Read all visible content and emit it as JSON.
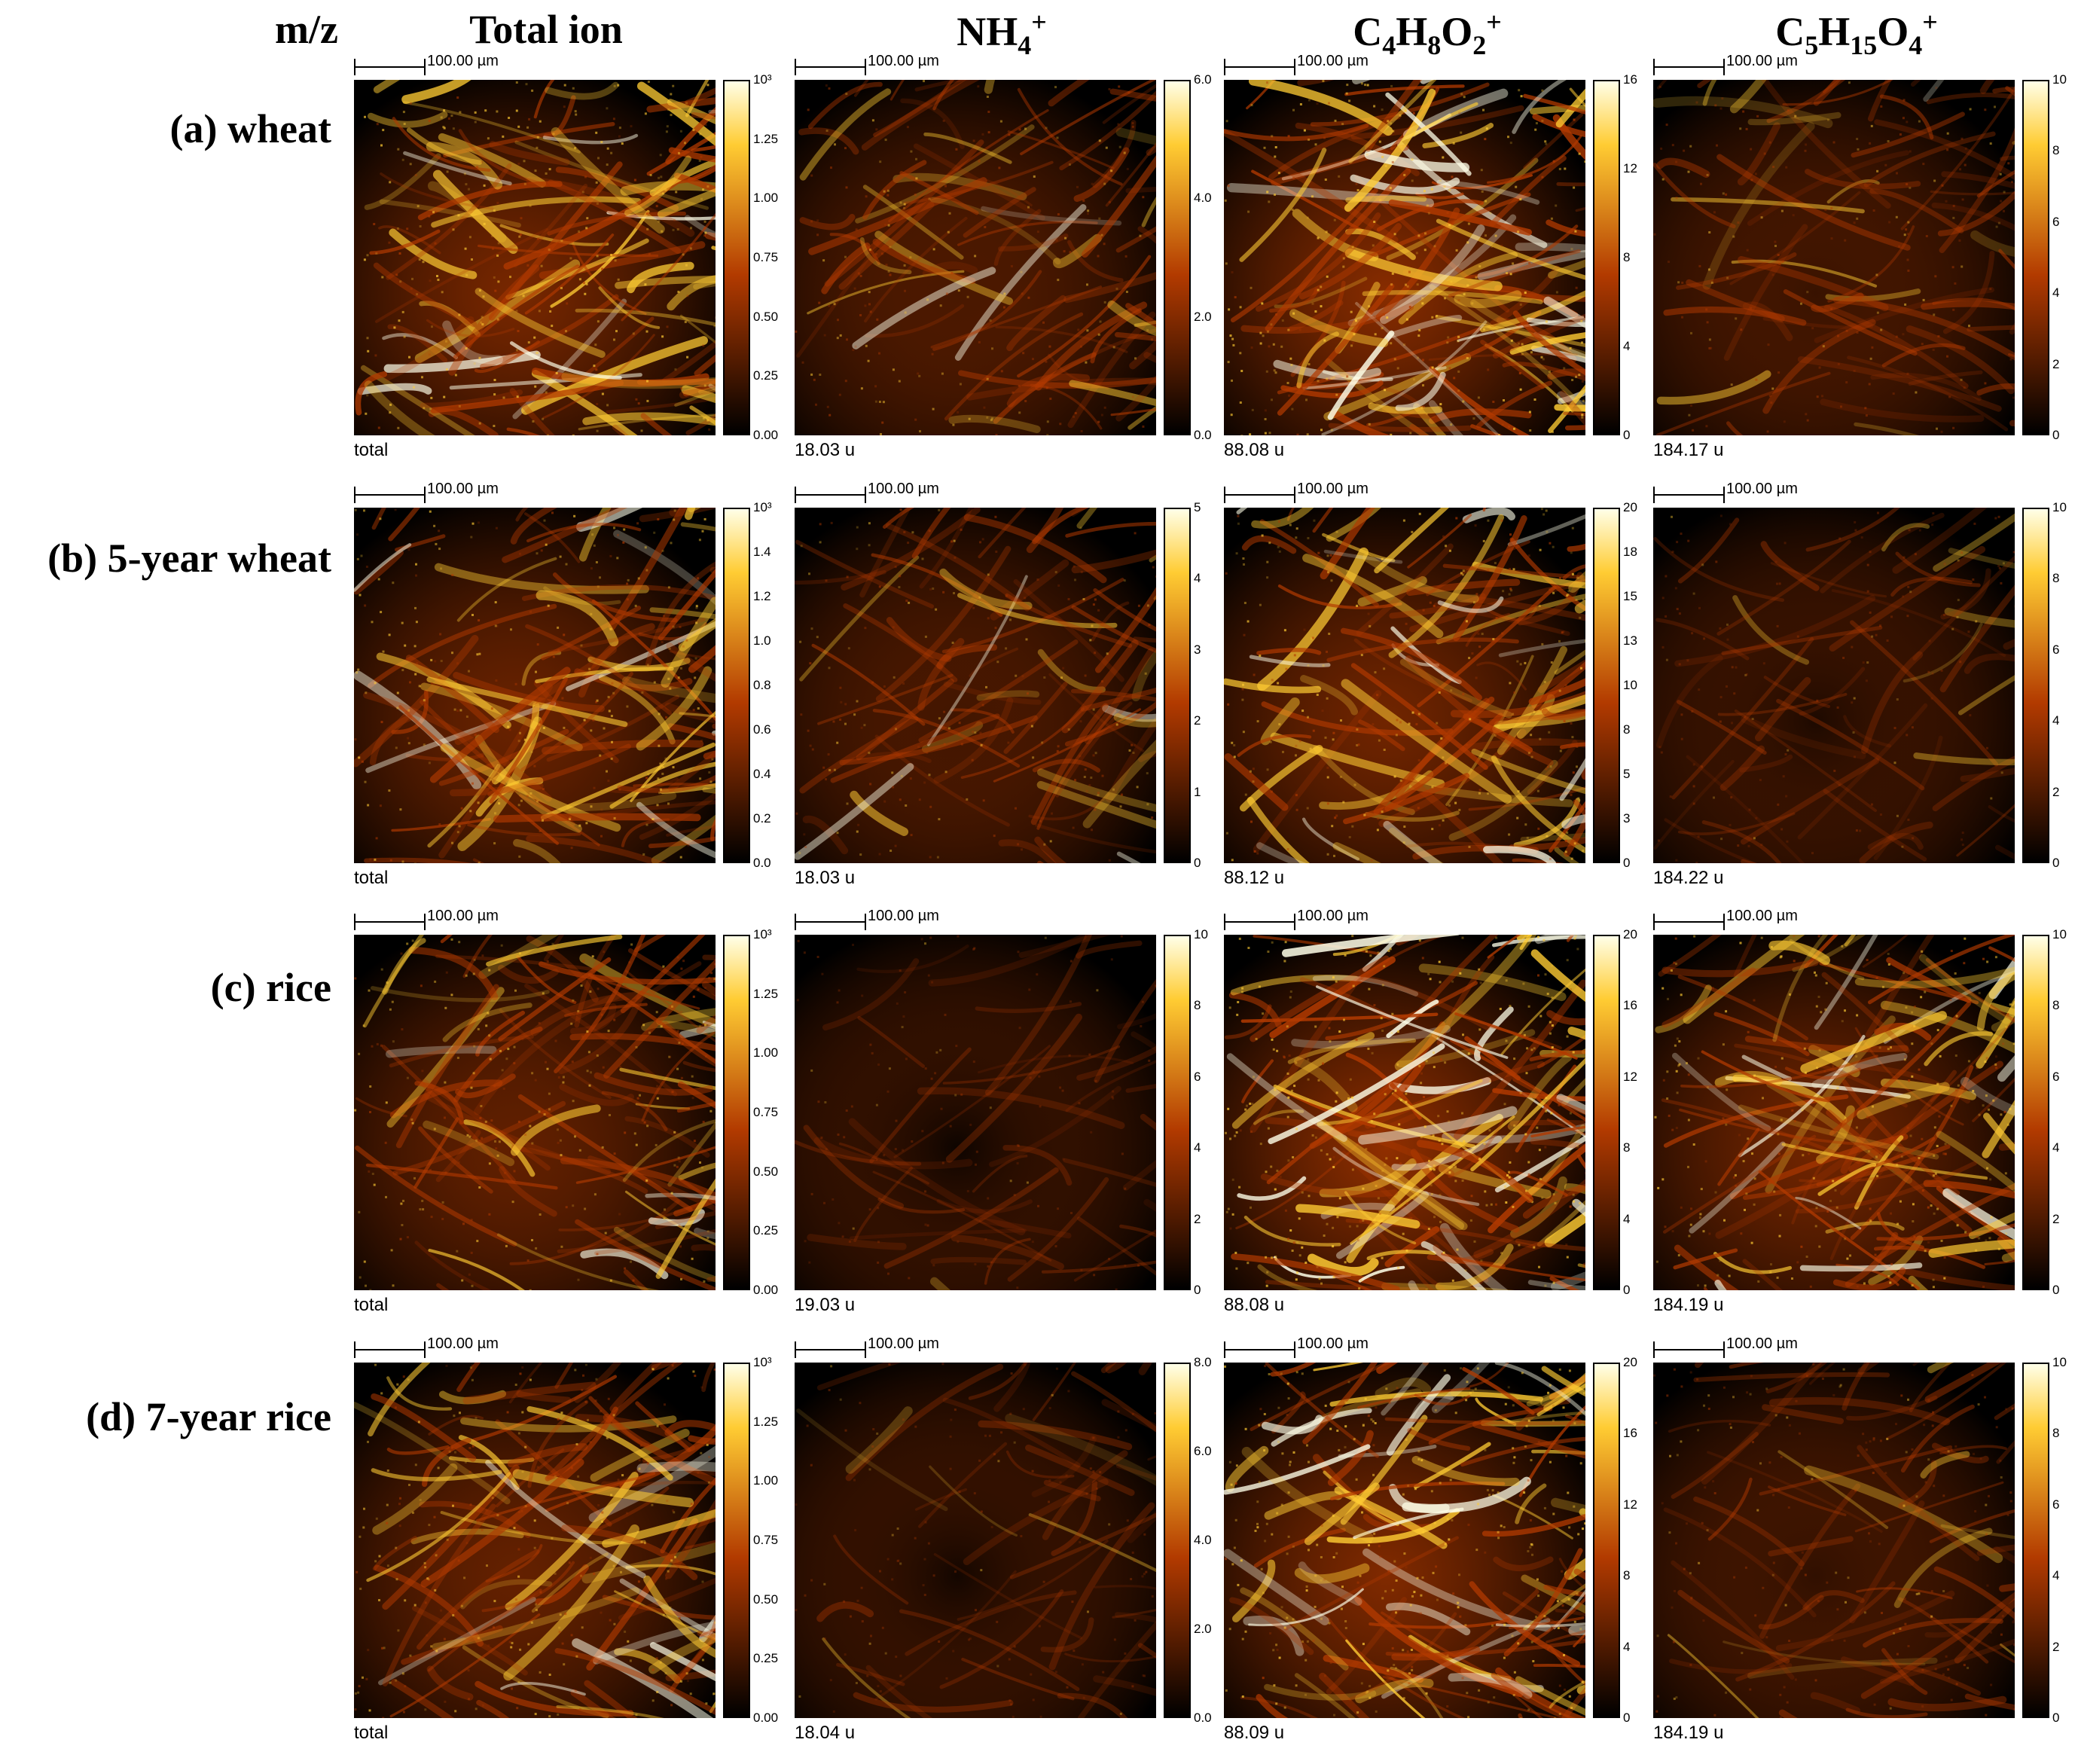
{
  "header": {
    "mz": "m/z",
    "columns": [
      {
        "text": "Total ion"
      },
      {
        "base": "NH",
        "parts": [
          {
            "sub": "4"
          },
          {
            "sup": "+"
          }
        ]
      },
      {
        "base": "C",
        "parts": [
          {
            "sub": "4"
          },
          {
            "t": "H"
          },
          {
            "sub": "8"
          },
          {
            "t": "O"
          },
          {
            "sub": "2"
          },
          {
            "sup": "+"
          }
        ]
      },
      {
        "base": "C",
        "parts": [
          {
            "sub": "5"
          },
          {
            "t": "H"
          },
          {
            "sub": "15"
          },
          {
            "t": "O"
          },
          {
            "sub": "4"
          },
          {
            "sup": "+"
          }
        ]
      }
    ]
  },
  "scalebar_label": "100.00 µm",
  "colors": {
    "dark": "#000000",
    "mid": "#b23a00",
    "bright": "#ffcc33",
    "peak": "#ffffe8"
  },
  "rows": [
    {
      "label": "(a) wheat",
      "panels": [
        {
          "mass": "total",
          "ticks": [
            "10³",
            "1.25",
            "1.00",
            "0.75",
            "0.50",
            "0.25",
            "0.00"
          ],
          "brightness": 0.75
        },
        {
          "mass": "18.03 u",
          "ticks": [
            "6.0",
            "4.0",
            "2.0",
            "0.0"
          ],
          "brightness": 0.45
        },
        {
          "mass": "88.08 u",
          "ticks": [
            "16",
            "12",
            "8",
            "4",
            "0"
          ],
          "brightness": 0.85
        },
        {
          "mass": "184.17 u",
          "ticks": [
            "10",
            "8",
            "6",
            "4",
            "2",
            "0"
          ],
          "brightness": 0.35
        }
      ]
    },
    {
      "label": "(b) 5-year wheat",
      "panels": [
        {
          "mass": "total",
          "ticks": [
            "10³",
            "1.4",
            "1.2",
            "1.0",
            "0.8",
            "0.6",
            "0.4",
            "0.2",
            "0.0"
          ],
          "brightness": 0.65
        },
        {
          "mass": "18.03 u",
          "ticks": [
            "5",
            "4",
            "3",
            "2",
            "1",
            "0"
          ],
          "brightness": 0.4
        },
        {
          "mass": "88.12 u",
          "ticks": [
            "20",
            "18",
            "15",
            "13",
            "10",
            "8",
            "5",
            "3",
            "0"
          ],
          "brightness": 0.7
        },
        {
          "mass": "184.22 u",
          "ticks": [
            "10",
            "8",
            "6",
            "4",
            "2",
            "0"
          ],
          "brightness": 0.18
        }
      ]
    },
    {
      "label": "(c) rice",
      "panels": [
        {
          "mass": "total",
          "ticks": [
            "10³",
            "1.25",
            "1.00",
            "0.75",
            "0.50",
            "0.25",
            "0.00"
          ],
          "brightness": 0.6
        },
        {
          "mass": "19.03 u",
          "ticks": [
            "10",
            "8",
            "6",
            "4",
            "2",
            "0"
          ],
          "brightness": 0.08
        },
        {
          "mass": "88.08 u",
          "ticks": [
            "20",
            "16",
            "12",
            "8",
            "4",
            "0"
          ],
          "brightness": 0.9
        },
        {
          "mass": "184.19 u",
          "ticks": [
            "10",
            "8",
            "6",
            "4",
            "2",
            "0"
          ],
          "brightness": 0.7
        }
      ]
    },
    {
      "label": "(d) 7-year rice",
      "panels": [
        {
          "mass": "total",
          "ticks": [
            "10³",
            "1.25",
            "1.00",
            "0.75",
            "0.50",
            "0.25",
            "0.00"
          ],
          "brightness": 0.62
        },
        {
          "mass": "18.04 u",
          "ticks": [
            "8.0",
            "6.0",
            "4.0",
            "2.0",
            "0.0"
          ],
          "brightness": 0.12
        },
        {
          "mass": "88.09 u",
          "ticks": [
            "20",
            "16",
            "12",
            "8",
            "4",
            "0"
          ],
          "brightness": 0.8
        },
        {
          "mass": "184.19 u",
          "ticks": [
            "10",
            "8",
            "6",
            "4",
            "2",
            "0"
          ],
          "brightness": 0.3
        }
      ]
    }
  ]
}
